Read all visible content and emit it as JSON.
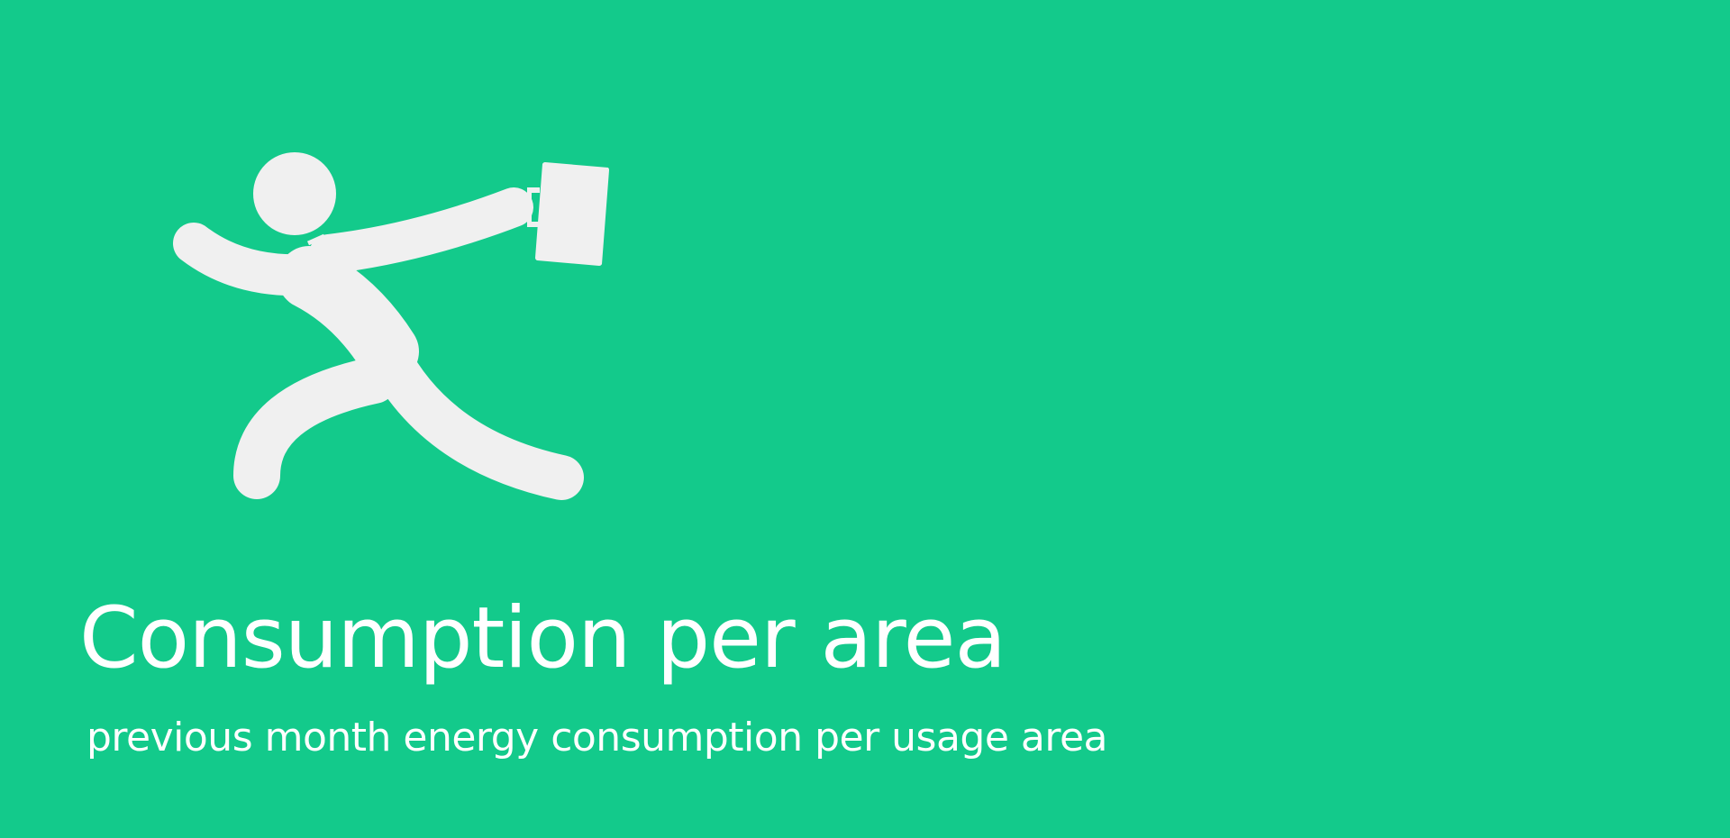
{
  "tile": {
    "title": "Consumption per area",
    "subtitle": "previous month energy consumption per usage area",
    "icon": "running-businessman-icon",
    "background_color": "#13ca8b",
    "icon_color": "#f0f0f0",
    "text_color": "#ffffff"
  }
}
